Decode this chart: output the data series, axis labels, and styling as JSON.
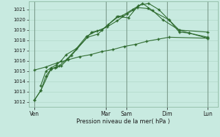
{
  "title": "",
  "xlabel": "Pression niveau de la mer( hPa )",
  "background_color": "#c8eae0",
  "grid_color": "#b0d8c8",
  "vline_color": "#7a9a8a",
  "line_color": "#2d6a2d",
  "ylim": [
    1011.5,
    1021.8
  ],
  "yticks": [
    1012,
    1013,
    1014,
    1015,
    1016,
    1017,
    1018,
    1019,
    1020,
    1021
  ],
  "day_labels": [
    "Ven",
    "Mar",
    "Sam",
    "Dim",
    "Lun"
  ],
  "day_positions": [
    0.0,
    3.5,
    4.5,
    6.5,
    8.5
  ],
  "series": [
    [
      1012.2,
      1013.1,
      1014.5,
      1015.2,
      1015.3,
      1015.5,
      1016.2,
      1018.3,
      1018.6,
      1019.5,
      1020.3,
      1020.2,
      1021.4,
      1021.6,
      1021.0,
      1020.0,
      1018.8,
      1018.7,
      1018.2
    ],
    [
      1012.2,
      1013.1,
      1015.2,
      1015.4,
      1015.5,
      1016.5,
      1018.8,
      1019.0,
      1020.3,
      1020.4,
      1021.0,
      1021.6,
      1020.9,
      1020.0,
      1019.0,
      1018.8
    ],
    [
      1013.6,
      1015.0,
      1015.3,
      1015.6,
      1016.0,
      1016.6,
      1017.2,
      1018.4,
      1018.9,
      1019.3,
      1019.9,
      1020.6,
      1021.2,
      1021.1,
      1020.0,
      1019.0,
      1018.7,
      1018.3
    ],
    [
      1015.1,
      1015.4,
      1015.8,
      1016.1,
      1016.4,
      1016.6,
      1016.9,
      1017.1,
      1017.4,
      1017.6,
      1017.9,
      1018.1,
      1018.3,
      1018.2
    ]
  ],
  "series_x": [
    [
      0.0,
      0.3,
      0.55,
      0.8,
      1.0,
      1.2,
      1.6,
      2.6,
      3.1,
      3.6,
      4.1,
      4.6,
      5.1,
      5.6,
      6.1,
      6.6,
      7.1,
      7.6,
      8.5
    ],
    [
      0.0,
      0.3,
      0.8,
      1.05,
      1.3,
      1.8,
      2.8,
      3.3,
      4.05,
      4.3,
      4.8,
      5.3,
      5.8,
      6.3,
      7.1,
      8.5
    ],
    [
      0.3,
      0.55,
      0.8,
      1.05,
      1.3,
      1.55,
      2.05,
      2.55,
      3.05,
      3.55,
      4.05,
      4.55,
      5.05,
      5.55,
      6.6,
      7.1,
      7.6,
      8.5
    ],
    [
      0.0,
      0.55,
      1.1,
      1.65,
      2.2,
      2.75,
      3.3,
      3.85,
      4.4,
      4.95,
      5.5,
      6.05,
      6.6,
      8.5
    ]
  ],
  "marker": "+",
  "linewidth": 0.8,
  "markersize": 3.5,
  "markeredgewidth": 1.0,
  "xlim": [
    -0.3,
    9.0
  ]
}
